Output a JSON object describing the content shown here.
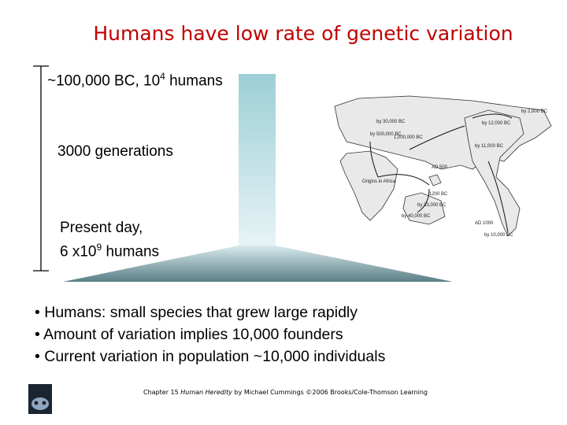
{
  "title": "Humans have low rate of genetic variation",
  "timeline": {
    "top": {
      "prefix": "~100,000 BC, 10",
      "exponent": "4",
      "suffix": " humans"
    },
    "middle": "3000 generations",
    "bottom": {
      "line1": "Present day,",
      "prefix": "6 x10",
      "exponent": "9",
      "suffix": " humans"
    }
  },
  "map_labels": [
    "by 30,000 BC",
    "by 12,000 BC",
    "by 2,000 BC",
    "by 500,000 BC",
    "1,000,000 BC",
    "by 11,000 BC",
    "AD 500",
    "Origins in Africa",
    "1200 BC",
    "by 33,000 BC",
    "by 40,000 BC",
    "AD 1000",
    "by 10,000 BC"
  ],
  "bullets": [
    "Humans: small species that grew large rapidly",
    "Amount of variation implies 10,000 founders",
    "Current variation in population ~10,000 individuals"
  ],
  "footer": {
    "chapter": "Chapter 15",
    "book": "Human Heredity",
    "rest": "by Michael Cummings ©2006 Brooks/Cole-Thomson Learning"
  }
}
